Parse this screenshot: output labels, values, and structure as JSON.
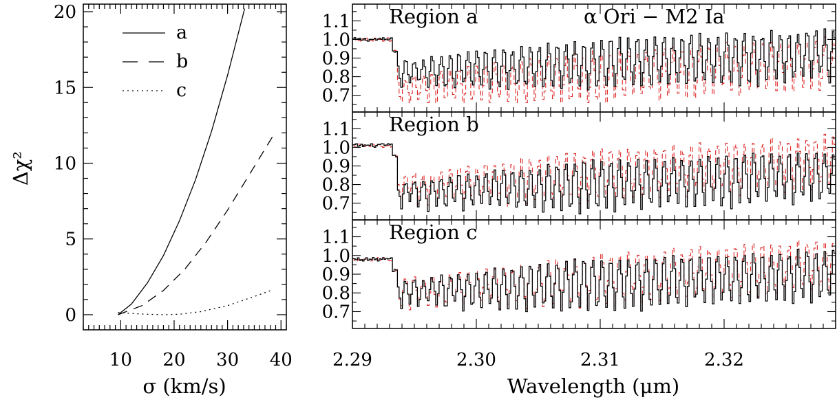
{
  "chart_data": [
    {
      "type": "line",
      "xlabel": "σ (km/s)",
      "ylabel": "Δχ²",
      "xlim": [
        3,
        41
      ],
      "ylim": [
        -1,
        20.5
      ],
      "xticks": [
        10,
        20,
        30,
        40
      ],
      "xtick_labels": [
        "10",
        "20",
        "30",
        "40"
      ],
      "yticks": [
        0,
        5,
        10,
        15,
        20
      ],
      "ytick_labels": [
        "0",
        "5",
        "10",
        "15",
        "20"
      ],
      "legend_placement": "top-left",
      "series": [
        {
          "name": "a",
          "style": "solid",
          "x": [
            9.5,
            12,
            15,
            18,
            21,
            24,
            27,
            30,
            33.2
          ],
          "y": [
            0,
            0.7,
            2.1,
            3.9,
            6.2,
            8.9,
            12.1,
            15.8,
            20.2
          ]
        },
        {
          "name": "b",
          "style": "dashed",
          "x": [
            9.5,
            14,
            18,
            22,
            26,
            30,
            34,
            38.5
          ],
          "y": [
            0,
            0.6,
            1.6,
            3.0,
            4.8,
            6.9,
            9.2,
            11.8
          ]
        },
        {
          "name": "c",
          "style": "dotted",
          "x": [
            9.5,
            12,
            15,
            18,
            21,
            25,
            30,
            35,
            38.5
          ],
          "y": [
            0.15,
            0.08,
            0.03,
            0.0,
            0.03,
            0.2,
            0.6,
            1.2,
            1.65
          ]
        }
      ]
    },
    {
      "type": "line",
      "title": "α Ori − M2 Ia",
      "xlabel": "Wavelength (μm)",
      "xlim": [
        2.29,
        2.329
      ],
      "xticks": [
        2.29,
        2.3,
        2.31,
        2.32
      ],
      "xtick_labels": [
        "2.29",
        "2.30",
        "2.31",
        "2.32"
      ],
      "ylim": [
        0.61,
        1.19
      ],
      "yticks": [
        0.7,
        0.8,
        0.9,
        1.0,
        1.1
      ],
      "ytick_labels": [
        "0.7",
        "0.8",
        "0.9",
        "1.0",
        "1.1"
      ],
      "series_colors": {
        "observed": "#000000",
        "model": "#dd2222"
      },
      "band_head_um": 2.2935,
      "regions": [
        {
          "label": "Region a",
          "continuum": 1.0,
          "post_band_level": 0.79,
          "trough_min": 0.66,
          "model_post_band_level": 0.7
        },
        {
          "label": "Region b",
          "continuum": 1.01,
          "post_band_level": 0.72,
          "trough_min": 0.62,
          "model_post_band_level": 0.75
        },
        {
          "label": "Region c",
          "continuum": 0.98,
          "post_band_level": 0.77,
          "trough_min": 0.7,
          "model_post_band_level": 0.77
        }
      ]
    }
  ]
}
